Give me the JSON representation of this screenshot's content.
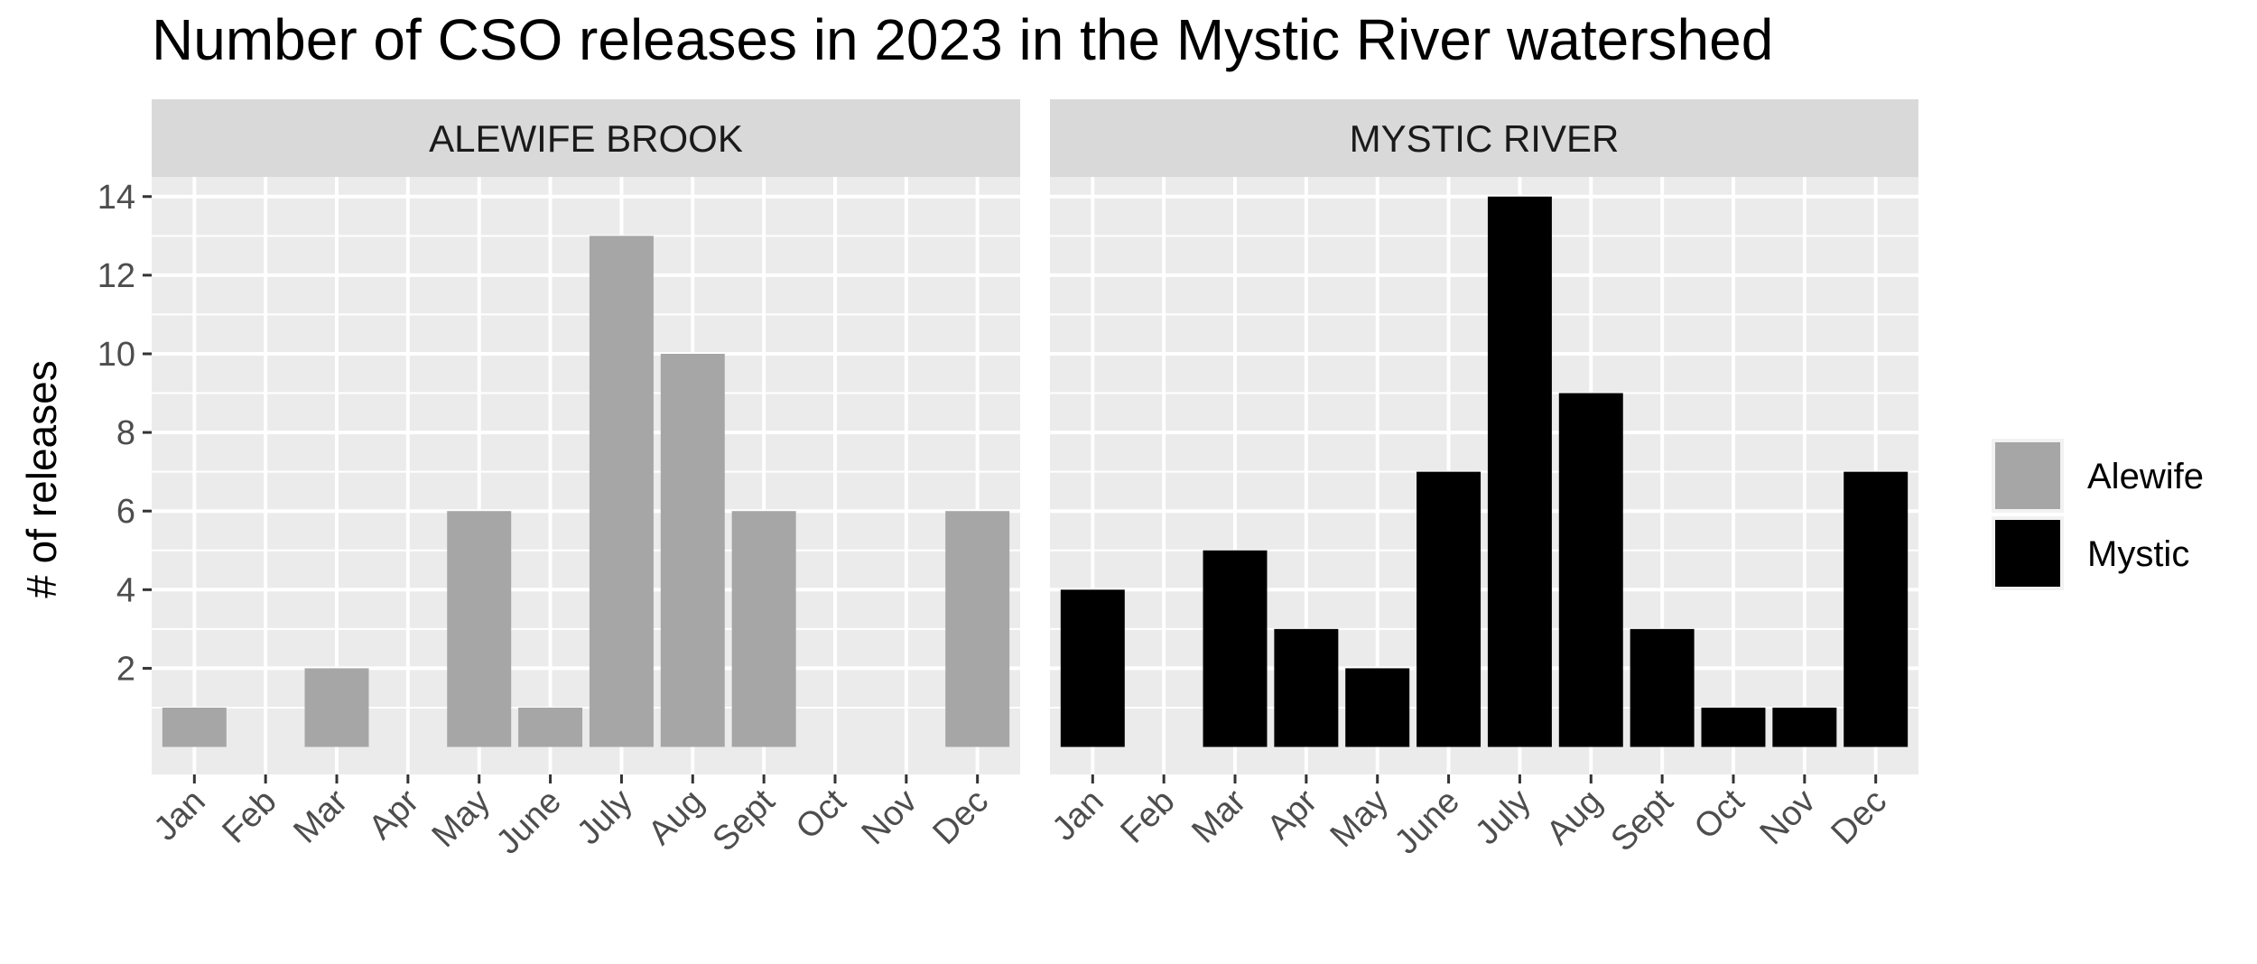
{
  "chart_data": {
    "type": "bar",
    "title": "Number of CSO releases in 2023 in the Mystic River watershed",
    "ylabel": "# of releases",
    "xlabel": "",
    "ylim": [
      0,
      14.5
    ],
    "yticks": [
      2,
      4,
      6,
      8,
      10,
      12,
      14
    ],
    "grid": true,
    "legend_position": "right",
    "categories": [
      "Jan",
      "Feb",
      "Mar",
      "Apr",
      "May",
      "June",
      "July",
      "Aug",
      "Sept",
      "Oct",
      "Nov",
      "Dec"
    ],
    "legend": [
      {
        "name": "Alewife",
        "color": "#a6a6a6"
      },
      {
        "name": "Mystic",
        "color": "#000000"
      }
    ],
    "facets": [
      {
        "label": "ALEWIFE BROOK",
        "series": "Alewife",
        "color": "#a6a6a6",
        "values": [
          1,
          0,
          2,
          0,
          6,
          1,
          13,
          10,
          6,
          0,
          0,
          6
        ]
      },
      {
        "label": "MYSTIC RIVER",
        "series": "Mystic",
        "color": "#000000",
        "values": [
          4,
          0,
          5,
          3,
          2,
          7,
          14,
          9,
          3,
          1,
          1,
          7
        ]
      }
    ]
  }
}
